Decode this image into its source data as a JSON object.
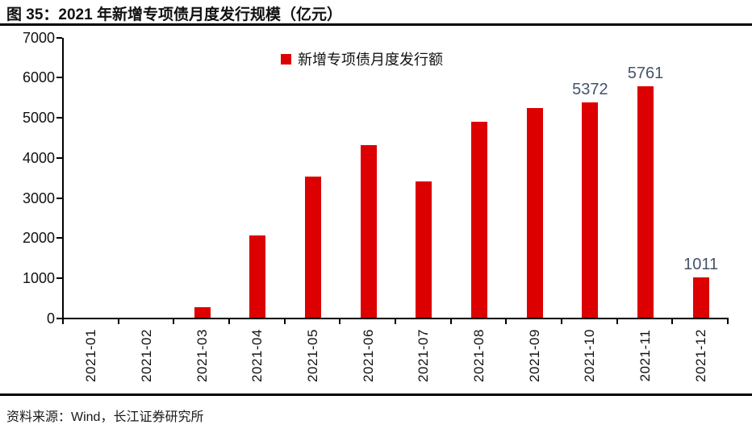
{
  "header": {
    "title": "图 35：2021 年新增专项债月度发行规模（亿元）"
  },
  "chart_data": {
    "type": "bar",
    "title": "2021 年新增专项债月度发行规模（亿元）",
    "legend": "新增专项债月度发行额",
    "legend_position": "top-center",
    "categories": [
      "2021-01",
      "2021-02",
      "2021-03",
      "2021-04",
      "2021-05",
      "2021-06",
      "2021-07",
      "2021-08",
      "2021-09",
      "2021-10",
      "2021-11",
      "2021-12"
    ],
    "values": [
      0,
      0,
      264,
      2056,
      3521,
      4302,
      3403,
      4884,
      5231,
      5372,
      5761,
      1011
    ],
    "point_labels": [
      "",
      "",
      "",
      "",
      "",
      "",
      "",
      "",
      "",
      "5372",
      "5761",
      "1011"
    ],
    "ylim": [
      0,
      7000
    ],
    "ytick_interval": 1000,
    "yticks": [
      "0",
      "1000",
      "2000",
      "3000",
      "4000",
      "5000",
      "6000",
      "7000"
    ],
    "grid": false,
    "bar_color": "#DC0000",
    "value_label_color": "#44546A",
    "axis_color": "#000000"
  },
  "footer": {
    "source": "资料来源：Wind，长江证券研究所"
  }
}
